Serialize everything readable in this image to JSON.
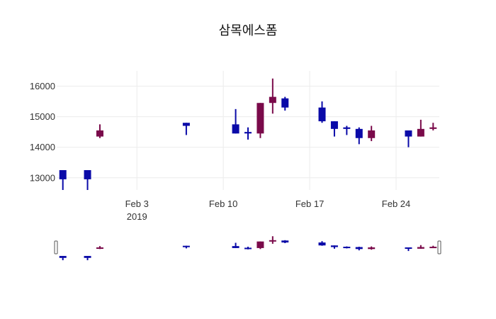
{
  "chart_data": {
    "type": "candlestick",
    "title": "삼목에스폼",
    "x_ticks": [
      {
        "date": "2019-02-03",
        "label": "Feb 3",
        "sublabel": "2019"
      },
      {
        "date": "2019-02-10",
        "label": "Feb 10",
        "sublabel": ""
      },
      {
        "date": "2019-02-17",
        "label": "Feb 17",
        "sublabel": ""
      },
      {
        "date": "2019-02-24",
        "label": "Feb 24",
        "sublabel": ""
      }
    ],
    "y_ticks": [
      13000,
      14000,
      15000,
      16000
    ],
    "xlim": [
      "2019-01-27T12:00",
      "2019-02-27T12:00"
    ],
    "ylim": [
      12600,
      16500
    ],
    "grid": true,
    "rangeslider": true,
    "colors": {
      "increasing": "#7a0a4a",
      "decreasing": "#0a0aa8",
      "grid": "#ececec"
    },
    "candles": [
      {
        "date": "2019-01-28",
        "open": 13250,
        "high": 13250,
        "low": 12600,
        "close": 12950
      },
      {
        "date": "2019-01-30",
        "open": 13250,
        "high": 13250,
        "low": 12600,
        "close": 12950
      },
      {
        "date": "2019-01-31",
        "open": 14350,
        "high": 14750,
        "low": 14300,
        "close": 14550
      },
      {
        "date": "2019-02-07",
        "open": 14800,
        "high": 14800,
        "low": 14400,
        "close": 14700
      },
      {
        "date": "2019-02-11",
        "open": 14750,
        "high": 15250,
        "low": 14450,
        "close": 14450
      },
      {
        "date": "2019-02-12",
        "open": 14500,
        "high": 14650,
        "low": 14250,
        "close": 14450
      },
      {
        "date": "2019-02-13",
        "open": 14450,
        "high": 15450,
        "low": 14300,
        "close": 15450
      },
      {
        "date": "2019-02-14",
        "open": 15450,
        "high": 16250,
        "low": 15100,
        "close": 15650
      },
      {
        "date": "2019-02-15",
        "open": 15600,
        "high": 15650,
        "low": 15200,
        "close": 15300
      },
      {
        "date": "2019-02-18",
        "open": 15300,
        "high": 15500,
        "low": 14800,
        "close": 14850
      },
      {
        "date": "2019-02-19",
        "open": 14850,
        "high": 14850,
        "low": 14350,
        "close": 14600
      },
      {
        "date": "2019-02-20",
        "open": 14650,
        "high": 14700,
        "low": 14400,
        "close": 14600
      },
      {
        "date": "2019-02-21",
        "open": 14600,
        "high": 14650,
        "low": 14100,
        "close": 14300
      },
      {
        "date": "2019-02-22",
        "open": 14300,
        "high": 14700,
        "low": 14200,
        "close": 14550
      },
      {
        "date": "2019-02-25",
        "open": 14550,
        "high": 14550,
        "low": 14000,
        "close": 14350
      },
      {
        "date": "2019-02-26",
        "open": 14350,
        "high": 14900,
        "low": 14350,
        "close": 14600
      },
      {
        "date": "2019-02-27",
        "open": 14600,
        "high": 14800,
        "low": 14550,
        "close": 14650
      }
    ]
  }
}
